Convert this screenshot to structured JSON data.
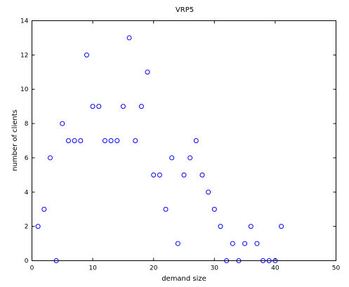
{
  "chart_data": {
    "type": "scatter",
    "title": "VRP5",
    "xlabel": "demand size",
    "ylabel": "number of clients",
    "xlim": [
      0,
      50
    ],
    "ylim": [
      0,
      14
    ],
    "x_ticks": [
      0,
      10,
      20,
      30,
      40,
      50
    ],
    "y_ticks": [
      0,
      2,
      4,
      6,
      8,
      10,
      12,
      14
    ],
    "grid": false,
    "marker": "circle",
    "marker_color": "#0000ff",
    "x": [
      1,
      2,
      3,
      4,
      5,
      6,
      7,
      8,
      9,
      10,
      11,
      12,
      13,
      14,
      15,
      16,
      17,
      18,
      19,
      20,
      21,
      22,
      23,
      24,
      25,
      26,
      27,
      28,
      29,
      30,
      31,
      32,
      33,
      34,
      35,
      36,
      37,
      38,
      39,
      40,
      41
    ],
    "y": [
      2,
      3,
      6,
      0,
      8,
      7,
      7,
      7,
      12,
      9,
      9,
      7,
      7,
      7,
      9,
      13,
      7,
      9,
      11,
      5,
      5,
      3,
      6,
      1,
      5,
      6,
      7,
      5,
      4,
      3,
      2,
      0,
      1,
      0,
      1,
      2,
      1,
      0,
      0,
      0,
      2
    ]
  }
}
